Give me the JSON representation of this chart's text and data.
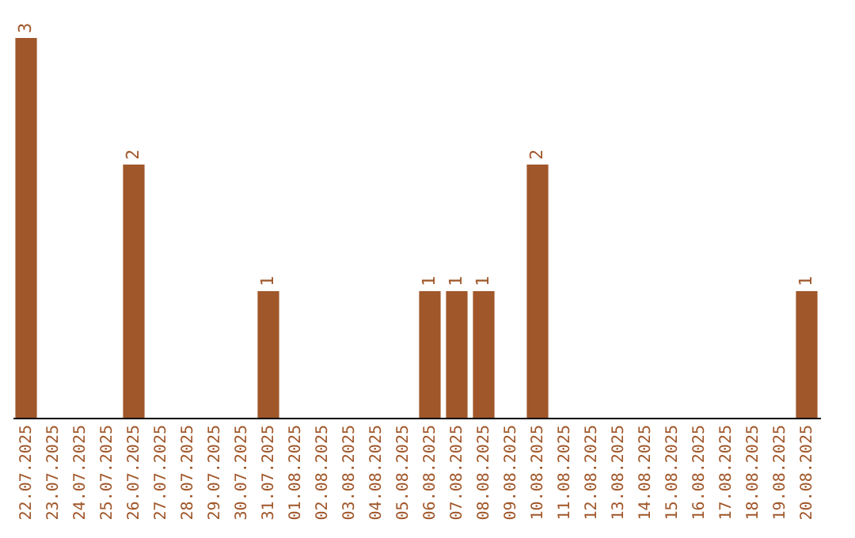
{
  "chart_data": {
    "type": "bar",
    "categories": [
      "22.07.2025",
      "23.07.2025",
      "24.07.2025",
      "25.07.2025",
      "26.07.2025",
      "27.07.2025",
      "28.07.2025",
      "29.07.2025",
      "30.07.2025",
      "31.07.2025",
      "01.08.2025",
      "02.08.2025",
      "03.08.2025",
      "04.08.2025",
      "05.08.2025",
      "06.08.2025",
      "07.08.2025",
      "08.08.2025",
      "09.08.2025",
      "10.08.2025",
      "11.08.2025",
      "12.08.2025",
      "13.08.2025",
      "14.08.2025",
      "15.08.2025",
      "16.08.2025",
      "17.08.2025",
      "18.08.2025",
      "19.08.2025",
      "20.08.2025"
    ],
    "values": [
      3,
      0,
      0,
      0,
      2,
      0,
      0,
      0,
      0,
      1,
      0,
      0,
      0,
      0,
      0,
      1,
      1,
      1,
      0,
      2,
      0,
      0,
      0,
      0,
      0,
      0,
      0,
      0,
      0,
      1
    ],
    "value_labels": [
      "3",
      null,
      null,
      null,
      "2",
      null,
      null,
      null,
      null,
      "1",
      null,
      null,
      null,
      null,
      null,
      "1",
      "1",
      "1",
      null,
      "2",
      null,
      null,
      null,
      null,
      null,
      null,
      null,
      null,
      null,
      "1"
    ],
    "color": "#a0572a",
    "tick_labels": "x",
    "grid": false
  }
}
